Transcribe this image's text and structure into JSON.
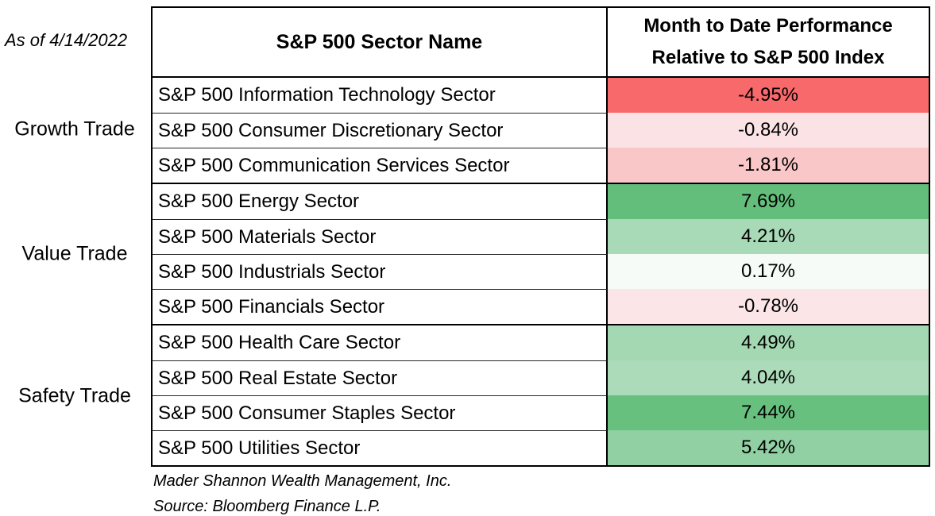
{
  "page": {
    "as_of_label": "As of 4/14/2022"
  },
  "side_labels": {
    "growth": "Growth Trade",
    "value": "Value Trade",
    "safety": "Safety Trade"
  },
  "table": {
    "header": {
      "sector_col": "S&P 500 Sector Name",
      "perf_col_line1": "Month to Date Performance",
      "perf_col_line2": "Relative to S&P 500 Index"
    },
    "rows": [
      {
        "name": "S&P 500 Information Technology Sector",
        "value": "-4.95%",
        "bg": "#F8696B"
      },
      {
        "name": "S&P 500 Consumer Discretionary Sector",
        "value": "-0.84%",
        "bg": "#FBE3E5"
      },
      {
        "name": "S&P 500 Communication Services Sector",
        "value": "-1.81%",
        "bg": "#FAC7C9"
      },
      {
        "name": "S&P 500 Energy Sector",
        "value": "7.69%",
        "bg": "#63BE7B"
      },
      {
        "name": "S&P 500 Materials Sector",
        "value": "4.21%",
        "bg": "#A8DAB7"
      },
      {
        "name": "S&P 500 Industrials Sector",
        "value": "0.17%",
        "bg": "#F7FBF8"
      },
      {
        "name": "S&P 500 Financials Sector",
        "value": "-0.78%",
        "bg": "#FBE5E6"
      },
      {
        "name": "S&P 500 Health Care Sector",
        "value": "4.49%",
        "bg": "#A3D8B2"
      },
      {
        "name": "S&P 500 Real Estate Sector",
        "value": "4.04%",
        "bg": "#ACDBBA"
      },
      {
        "name": "S&P 500 Consumer Staples Sector",
        "value": "7.44%",
        "bg": "#68C07F"
      },
      {
        "name": "S&P 500 Utilities Sector",
        "value": "5.42%",
        "bg": "#90D0A2"
      }
    ]
  },
  "footer": {
    "line1": "Mader Shannon Wealth Management, Inc.",
    "line2": "Source: Bloomberg Finance L.P."
  },
  "chart_data": {
    "type": "table",
    "as_of": "4/14/2022",
    "columns": [
      "S&P 500 Sector Name",
      "Month to Date Performance Relative to S&P 500 Index"
    ],
    "groups": [
      {
        "label": "Growth Trade",
        "sectors": [
          "S&P 500 Information Technology Sector",
          "S&P 500 Consumer Discretionary Sector",
          "S&P 500 Communication Services Sector"
        ],
        "values_pct": [
          -4.95,
          -0.84,
          -1.81
        ]
      },
      {
        "label": "Value Trade",
        "sectors": [
          "S&P 500 Energy Sector",
          "S&P 500 Materials Sector",
          "S&P 500 Industrials Sector",
          "S&P 500 Financials Sector"
        ],
        "values_pct": [
          7.69,
          4.21,
          0.17,
          -0.78
        ]
      },
      {
        "label": "Safety Trade",
        "sectors": [
          "S&P 500 Health Care Sector",
          "S&P 500 Real Estate Sector",
          "S&P 500 Consumer Staples Sector",
          "S&P 500 Utilities Sector"
        ],
        "values_pct": [
          4.49,
          4.04,
          7.44,
          5.42
        ]
      }
    ],
    "color_scale": {
      "negative_max": "#F8696B",
      "neutral": "#FCFCFF",
      "positive_max": "#63BE7B"
    },
    "source": "Bloomberg Finance L.P.",
    "legend_position": "none",
    "grid": "cell-borders"
  }
}
